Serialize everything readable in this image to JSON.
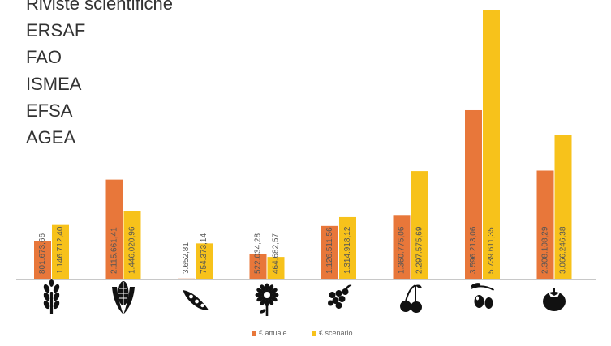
{
  "sources": [
    "Riviste scientifiche",
    "ERSAF",
    "FAO",
    "ISMEA",
    "EFSA",
    "AGEA"
  ],
  "chart_data": {
    "type": "bar",
    "categories": [
      "wheat-icon",
      "corn-icon",
      "pea-icon",
      "sunflower-icon",
      "grape-icon",
      "cherry-icon",
      "olive-icon",
      "tomato-icon"
    ],
    "series": [
      {
        "name": "€ attuale",
        "color": "#e8773a",
        "values": [
          801673.66,
          2115661.41,
          3652.81,
          522034.28,
          1126511.56,
          1360775.06,
          3596213.06,
          2308108.29
        ],
        "labels": [
          "801.673,66",
          "2.115.661,41",
          "3.652,81",
          "522.034,28",
          "1.126.511,56",
          "1.360.775,06",
          "3.596.213,06",
          "2.308.108,29"
        ]
      },
      {
        "name": "€ scenario",
        "color": "#f7c21b",
        "values": [
          1146712.4,
          1446020.96,
          754373.14,
          464682.57,
          1314918.12,
          2297575.69,
          5739611.35,
          3066246.38
        ],
        "labels": [
          "1.146.712,40",
          "1.446.020,96",
          "754.373,14",
          "464.682,57",
          "1.314.918,12",
          "2.297.575,69",
          "5.739.611,35",
          "3.066.246,38"
        ]
      }
    ],
    "ylim": [
      0,
      5739611.35
    ],
    "grid": false,
    "legend": "bottom"
  }
}
